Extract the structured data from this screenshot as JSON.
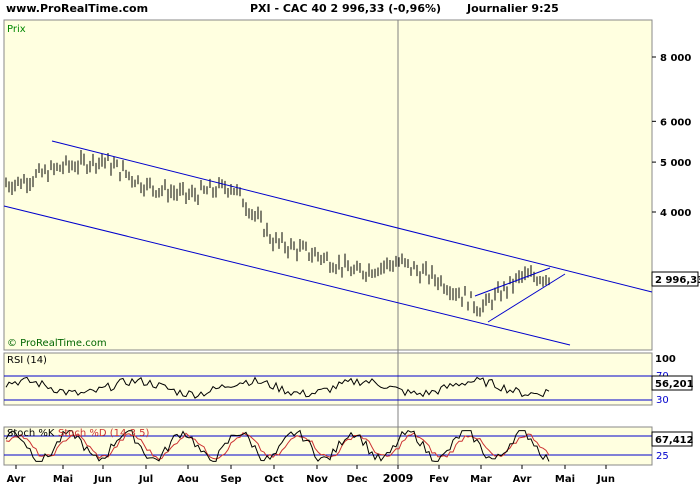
{
  "header": {
    "site": "www.ProRealTime.com",
    "instrument": "PXI - CAC 40   2 996,33 (-0,96%)",
    "period": "Journalier  9:25"
  },
  "panels": {
    "price_label": "Prix",
    "watermark": "© ProRealTime.com",
    "last_price": "2 996,33",
    "rsi_label": "RSI (14)",
    "rsi_value": "56,201",
    "rsi_levels": [
      "70",
      "30"
    ],
    "rsi_top": "100",
    "stoch_label": "Stoch %K",
    "stoch_label2": "Stoch %D (14 3 5)",
    "stoch_value": "67,412",
    "stoch_levels": [
      "75",
      "25"
    ]
  },
  "colors": {
    "background": "#FFFFE0",
    "channel_lines": "#0000CC",
    "price_bars": "#000000",
    "indicator_line": "#000000",
    "stoch_d": "#CC3333",
    "vertical_year_marker": "#808080",
    "value_box": "#FFFFFF"
  },
  "chart_data": [
    {
      "type": "line",
      "title": "PXI - CAC 40",
      "ylabel": "Prix",
      "y_scale": "log",
      "yticks": [
        "4 000",
        "5 000",
        "6 000",
        "8 000"
      ],
      "ytick_values": [
        4000,
        5000,
        6000,
        8000
      ],
      "xticks": [
        "Avr",
        "Mai",
        "Jun",
        "Jul",
        "Aou",
        "Sep",
        "Oct",
        "Nov",
        "Dec",
        "2009",
        "Fev",
        "Mar",
        "Avr",
        "Mai",
        "Jun"
      ],
      "series": [
        {
          "x": [
            "Avr",
            "Mai",
            "Jun",
            "Jul",
            "Aou",
            "Sep",
            "Oct",
            "Nov",
            "Dec",
            "2009",
            "Fev",
            "Mar",
            "Avr"
          ],
          "values": [
            4550,
            4900,
            5050,
            4500,
            4300,
            4500,
            3500,
            3300,
            3050,
            3200,
            2950,
            2600,
            2996
          ]
        }
      ],
      "last_value": 2996.33,
      "change_pct": -0.96
    },
    {
      "type": "line",
      "title": "RSI (14)",
      "ylim": [
        0,
        100
      ],
      "levels": [
        70,
        30
      ],
      "last_value": 56.201
    },
    {
      "type": "line",
      "title": "Stoch %K / Stoch %D (14 3 5)",
      "ylim": [
        0,
        100
      ],
      "levels": [
        75,
        25
      ],
      "last_value": 67.412
    }
  ]
}
